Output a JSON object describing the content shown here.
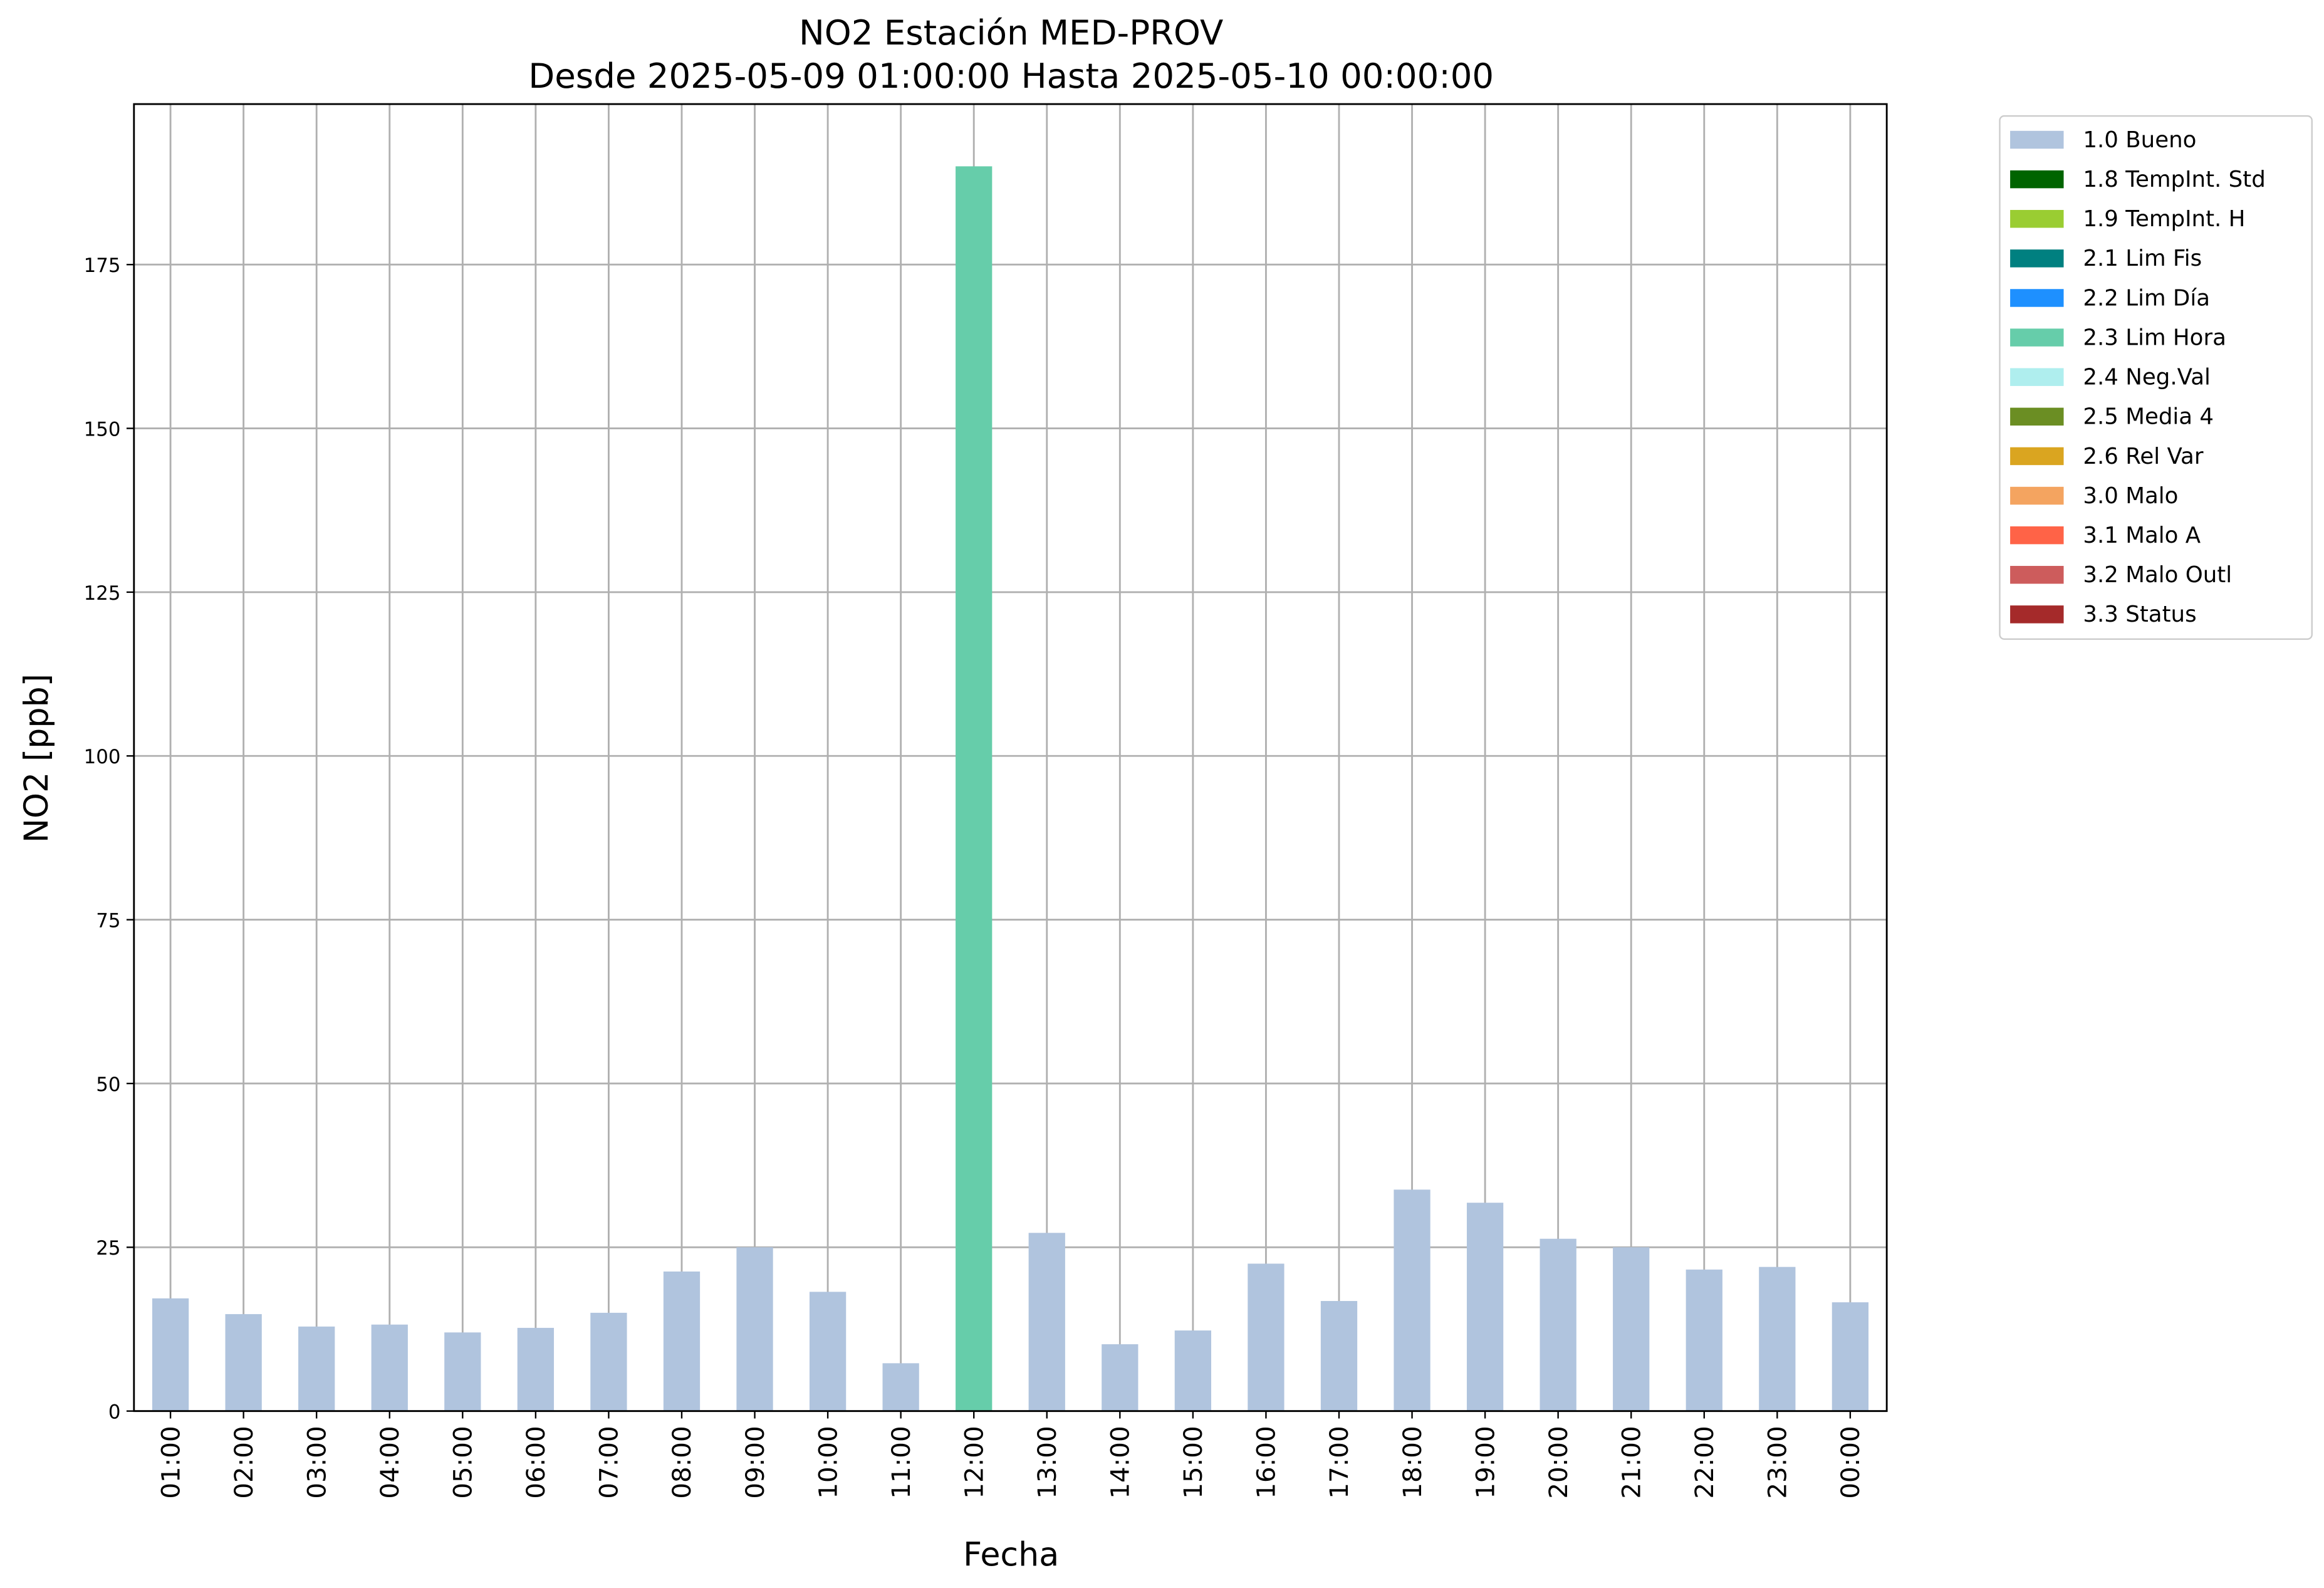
{
  "chart_data": {
    "type": "bar",
    "stacked": true,
    "title": "NO2 Estación MED-PROV",
    "subtitle": "Desde 2025-05-09 01:00:00 Hasta 2025-05-10 00:00:00",
    "x_label": "Fecha",
    "y_label": "NO2 [ppb]",
    "categories": [
      "01:00",
      "02:00",
      "03:00",
      "04:00",
      "05:00",
      "06:00",
      "07:00",
      "08:00",
      "09:00",
      "10:00",
      "11:00",
      "12:00",
      "13:00",
      "14:00",
      "15:00",
      "16:00",
      "17:00",
      "18:00",
      "19:00",
      "20:00",
      "21:00",
      "22:00",
      "23:00",
      "00:00"
    ],
    "series": [
      {
        "name": "1.0 Bueno",
        "color": "#b0c4de",
        "values": [
          17.2,
          14.8,
          12.9,
          13.2,
          12.0,
          12.7,
          15.0,
          21.3,
          25.0,
          18.2,
          7.3,
          null,
          27.2,
          10.2,
          12.3,
          22.5,
          16.8,
          33.8,
          31.8,
          26.3,
          25.0,
          21.6,
          22.0,
          16.6
        ]
      },
      {
        "name": "1.8 TempInt. Std",
        "color": "#006400",
        "values": [
          null,
          null,
          null,
          null,
          null,
          null,
          null,
          null,
          null,
          null,
          null,
          null,
          null,
          null,
          null,
          null,
          null,
          null,
          null,
          null,
          null,
          null,
          null,
          null
        ]
      },
      {
        "name": "1.9 TempInt. H",
        "color": "#9acd32",
        "values": [
          null,
          null,
          null,
          null,
          null,
          null,
          null,
          null,
          null,
          null,
          null,
          null,
          null,
          null,
          null,
          null,
          null,
          null,
          null,
          null,
          null,
          null,
          null,
          null
        ]
      },
      {
        "name": "2.1 Lim Fis",
        "color": "#008080",
        "values": [
          null,
          null,
          null,
          null,
          null,
          null,
          null,
          null,
          null,
          null,
          null,
          null,
          null,
          null,
          null,
          null,
          null,
          null,
          null,
          null,
          null,
          null,
          null,
          null
        ]
      },
      {
        "name": "2.2 Lim Día",
        "color": "#1e90ff",
        "values": [
          null,
          null,
          null,
          null,
          null,
          null,
          null,
          null,
          null,
          null,
          null,
          null,
          null,
          null,
          null,
          null,
          null,
          null,
          null,
          null,
          null,
          null,
          null,
          null
        ]
      },
      {
        "name": "2.3 Lim Hora",
        "color": "#66cdaa",
        "values": [
          null,
          null,
          null,
          null,
          null,
          null,
          null,
          null,
          null,
          null,
          null,
          190.0,
          null,
          null,
          null,
          null,
          null,
          null,
          null,
          null,
          null,
          null,
          null,
          null
        ]
      },
      {
        "name": "2.4 Neg.Val",
        "color": "#afeeee",
        "values": [
          null,
          null,
          null,
          null,
          null,
          null,
          null,
          null,
          null,
          null,
          null,
          null,
          null,
          null,
          null,
          null,
          null,
          null,
          null,
          null,
          null,
          null,
          null,
          null
        ]
      },
      {
        "name": "2.5 Media 4",
        "color": "#6b8e23",
        "values": [
          null,
          null,
          null,
          null,
          null,
          null,
          null,
          null,
          null,
          null,
          null,
          null,
          null,
          null,
          null,
          null,
          null,
          null,
          null,
          null,
          null,
          null,
          null,
          null
        ]
      },
      {
        "name": "2.6 Rel Var",
        "color": "#daa520",
        "values": [
          null,
          null,
          null,
          null,
          null,
          null,
          null,
          null,
          null,
          null,
          null,
          null,
          null,
          null,
          null,
          null,
          null,
          null,
          null,
          null,
          null,
          null,
          null,
          null
        ]
      },
      {
        "name": "3.0 Malo",
        "color": "#f4a460",
        "values": [
          null,
          null,
          null,
          null,
          null,
          null,
          null,
          null,
          null,
          null,
          null,
          null,
          null,
          null,
          null,
          null,
          null,
          null,
          null,
          null,
          null,
          null,
          null,
          null
        ]
      },
      {
        "name": "3.1 Malo A",
        "color": "#ff6347",
        "values": [
          null,
          null,
          null,
          null,
          null,
          null,
          null,
          null,
          null,
          null,
          null,
          null,
          null,
          null,
          null,
          null,
          null,
          null,
          null,
          null,
          null,
          null,
          null,
          null
        ]
      },
      {
        "name": "3.2 Malo Outl",
        "color": "#cd5c5c",
        "values": [
          null,
          null,
          null,
          null,
          null,
          null,
          null,
          null,
          null,
          null,
          null,
          null,
          null,
          null,
          null,
          null,
          null,
          null,
          null,
          null,
          null,
          null,
          null,
          null
        ]
      },
      {
        "name": "3.3 Status",
        "color": "#a52a2a",
        "values": [
          null,
          null,
          null,
          null,
          null,
          null,
          null,
          null,
          null,
          null,
          null,
          null,
          null,
          null,
          null,
          null,
          null,
          null,
          null,
          null,
          null,
          null,
          null,
          null
        ]
      }
    ],
    "ylim": [
      0,
      199.5
    ],
    "yticks": [
      0,
      25,
      50,
      75,
      100,
      125,
      150,
      175
    ],
    "grid": true,
    "legend": "outside-upper-right"
  }
}
